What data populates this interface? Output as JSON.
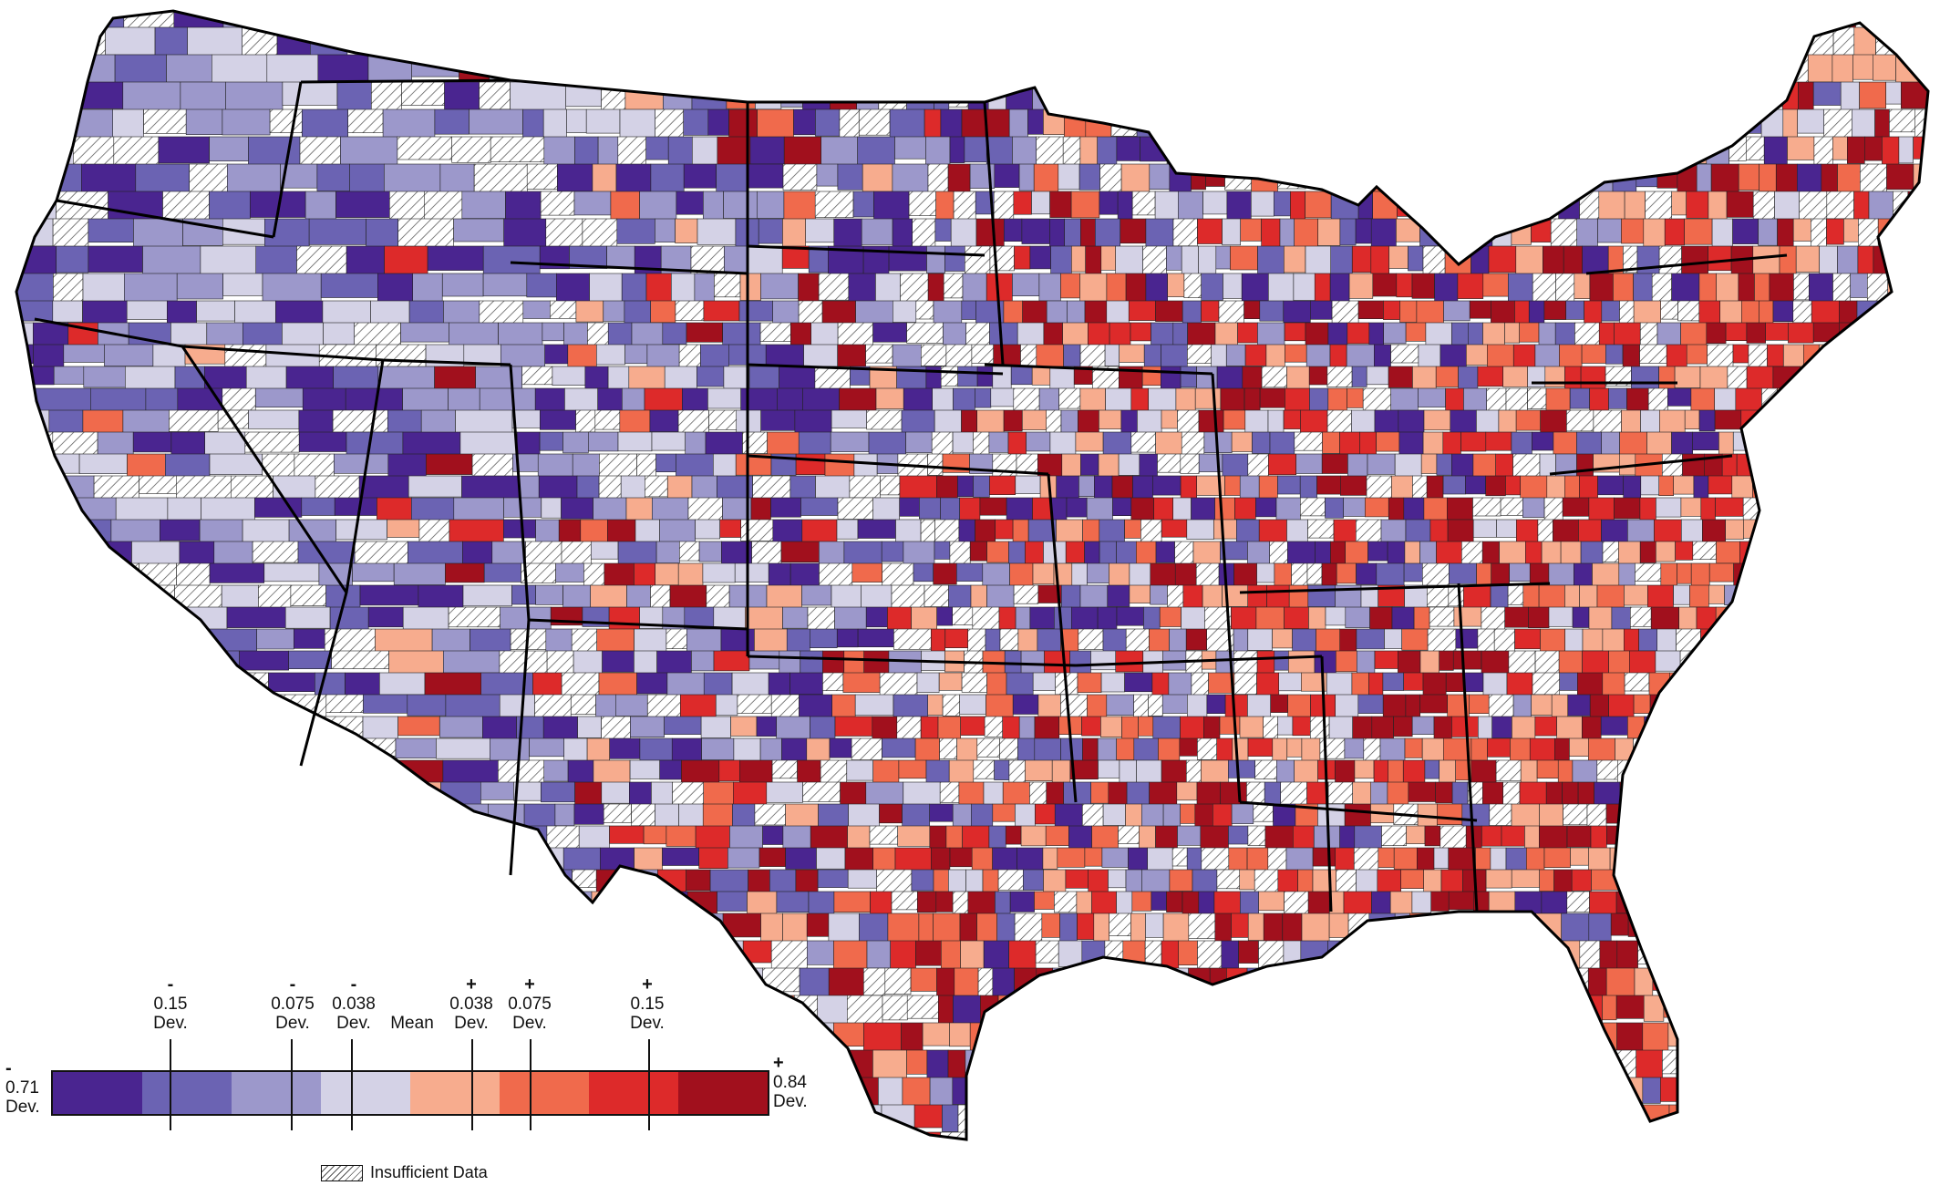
{
  "legend": {
    "left_end": {
      "sign": "-",
      "value": "0.71",
      "unit": "Dev."
    },
    "right_end": {
      "sign": "+",
      "value": "0.84",
      "unit": "Dev."
    },
    "ticks": [
      {
        "sign": "-",
        "value": "0.15",
        "unit": "Dev."
      },
      {
        "sign": "-",
        "value": "0.075",
        "unit": "Dev."
      },
      {
        "sign": "-",
        "value": "0.038",
        "unit": "Dev."
      },
      {
        "sign": "",
        "value": "Mean",
        "unit": ""
      },
      {
        "sign": "+",
        "value": "0.038",
        "unit": "Dev."
      },
      {
        "sign": "+",
        "value": "0.075",
        "unit": "Dev."
      },
      {
        "sign": "+",
        "value": "0.15",
        "unit": "Dev."
      }
    ],
    "colors": [
      "#4a2590",
      "#6b63b3",
      "#9c98cb",
      "#d4d2e6",
      "#f7ac8e",
      "#f06a4c",
      "#dd2a2a",
      "#a1101d"
    ],
    "insufficient_label": "Insufficient Data"
  },
  "map": {
    "fill_colors": [
      "#4a2590",
      "#6b63b3",
      "#9c98cb",
      "#d4d2e6",
      "#f7ac8e",
      "#f06a4c",
      "#dd2a2a",
      "#a1101d"
    ],
    "border_color": "#000000"
  }
}
